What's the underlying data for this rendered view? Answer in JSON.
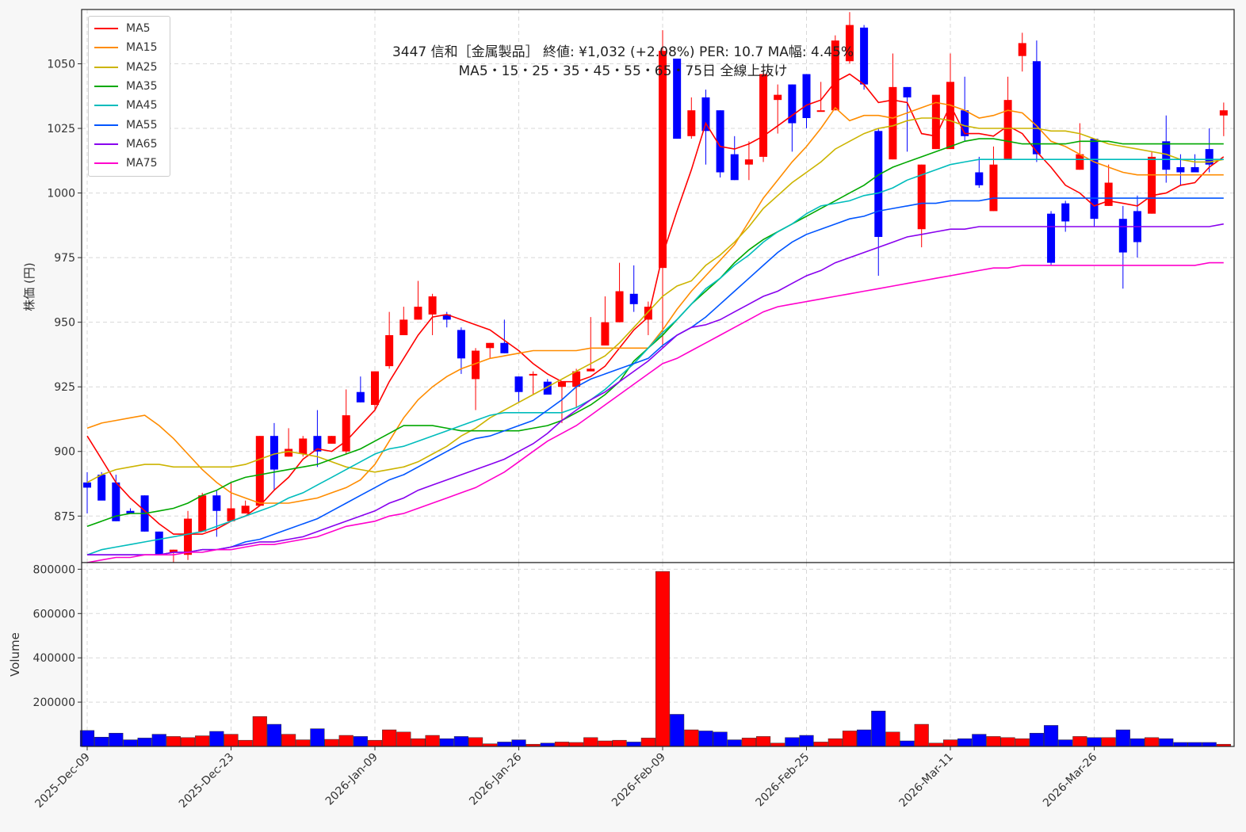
{
  "title_line1": "3447 信和［金属製品］ 終値: ¥1,032 (+2.08%)   PER: 10.7  MA幅: 4.45%",
  "title_line2": "MA5・15・25・35・45・55・65・75日 全線上抜け",
  "chart_data": {
    "type": "candlestick",
    "ylabel_price": "株価 (円)",
    "ylabel_volume": "Volume",
    "price_ylim": [
      857,
      1071
    ],
    "price_yticks": [
      875,
      900,
      925,
      950,
      975,
      1000,
      1025,
      1050
    ],
    "volume_ylim": [
      0,
      830000
    ],
    "volume_yticks": [
      200000,
      400000,
      600000,
      800000
    ],
    "xtick_labels": [
      {
        "index": 0,
        "label": "2025-Dec-09"
      },
      {
        "index": 10,
        "label": "2025-Dec-23"
      },
      {
        "index": 20,
        "label": "2026-Jan-09"
      },
      {
        "index": 30,
        "label": "2026-Jan-26"
      },
      {
        "index": 40,
        "label": "2026-Feb-09"
      },
      {
        "index": 50,
        "label": "2026-Feb-25"
      },
      {
        "index": 60,
        "label": "2026-Mar-11"
      },
      {
        "index": 70,
        "label": "2026-Mar-26"
      }
    ],
    "candles": [
      [
        888,
        892,
        876,
        886
      ],
      [
        891,
        892,
        882,
        881
      ],
      [
        888,
        891,
        873,
        873
      ],
      [
        877,
        878,
        876,
        876
      ],
      [
        883,
        883,
        869,
        869
      ],
      [
        869,
        869,
        860,
        860
      ],
      [
        861,
        862,
        857,
        862
      ],
      [
        860,
        877,
        858,
        874
      ],
      [
        869,
        884,
        869,
        883
      ],
      [
        883,
        885,
        867,
        877
      ],
      [
        873,
        888,
        873,
        878
      ],
      [
        876,
        881,
        876,
        879
      ],
      [
        879,
        906,
        879,
        906
      ],
      [
        906,
        911,
        885,
        893
      ],
      [
        898,
        909,
        898,
        901
      ],
      [
        899,
        906,
        898,
        905
      ],
      [
        906,
        916,
        894,
        900
      ],
      [
        903,
        906,
        903,
        906
      ],
      [
        900,
        924,
        899,
        914
      ],
      [
        923,
        929,
        919,
        919
      ],
      [
        918,
        931,
        916,
        931
      ],
      [
        933,
        954,
        932,
        945
      ],
      [
        945,
        956,
        945,
        951
      ],
      [
        951,
        966,
        951,
        956
      ],
      [
        953,
        961,
        945,
        960
      ],
      [
        953,
        954,
        948,
        951
      ],
      [
        947,
        948,
        930,
        936
      ],
      [
        928,
        940,
        916,
        939
      ],
      [
        940,
        942,
        936,
        942
      ],
      [
        942,
        951,
        938,
        938
      ],
      [
        929,
        929,
        919,
        923
      ],
      [
        930,
        931,
        922,
        930
      ],
      [
        927,
        928,
        922,
        922
      ],
      [
        925,
        926,
        911,
        927
      ],
      [
        925,
        932,
        917,
        931
      ],
      [
        931,
        952,
        931,
        932
      ],
      [
        941,
        960,
        941,
        950
      ],
      [
        950,
        973,
        950,
        962
      ],
      [
        961,
        972,
        954,
        957
      ],
      [
        951,
        958,
        945,
        956
      ],
      [
        971,
        1063,
        940,
        1055
      ],
      [
        1052,
        1052,
        1021,
        1021
      ],
      [
        1022,
        1037,
        1021,
        1032
      ],
      [
        1037,
        1040,
        1011,
        1024
      ],
      [
        1032,
        1032,
        1006,
        1008
      ],
      [
        1015,
        1022,
        1005,
        1005
      ],
      [
        1011,
        1020,
        1005,
        1013
      ],
      [
        1014,
        1048,
        1012,
        1046
      ],
      [
        1036,
        1042,
        1023,
        1038
      ],
      [
        1042,
        1042,
        1016,
        1027
      ],
      [
        1046,
        1046,
        1025,
        1029
      ],
      [
        1032,
        1043,
        1032,
        1032
      ],
      [
        1032,
        1061,
        1032,
        1059
      ],
      [
        1051,
        1070,
        1050,
        1065
      ],
      [
        1064,
        1065,
        1040,
        1042
      ],
      [
        1024,
        1025,
        968,
        983
      ],
      [
        1013,
        1054,
        1013,
        1041
      ],
      [
        1041,
        1041,
        1016,
        1037
      ],
      [
        986,
        1011,
        979,
        1011
      ],
      [
        1017,
        1038,
        1017,
        1038
      ],
      [
        1017,
        1054,
        1017,
        1043
      ],
      [
        1032,
        1045,
        1020,
        1022
      ],
      [
        1008,
        1014,
        1002,
        1003
      ],
      [
        993,
        1018,
        993,
        1011
      ],
      [
        1013,
        1045,
        1013,
        1036
      ],
      [
        1053,
        1062,
        1047,
        1058
      ],
      [
        1051,
        1059,
        1012,
        1015
      ],
      [
        992,
        993,
        972,
        973
      ],
      [
        996,
        997,
        985,
        989
      ],
      [
        1009,
        1027,
        1009,
        1015
      ],
      [
        1021,
        1021,
        987,
        990
      ],
      [
        995,
        1011,
        995,
        1004
      ],
      [
        990,
        995,
        963,
        977
      ],
      [
        993,
        999,
        975,
        981
      ],
      [
        992,
        1016,
        992,
        1014
      ],
      [
        1020,
        1030,
        1004,
        1009
      ],
      [
        1010,
        1015,
        1003,
        1008
      ],
      [
        1010,
        1015,
        1009,
        1008
      ],
      [
        1017,
        1025,
        1008,
        1011
      ],
      [
        1030,
        1035,
        1022,
        1032
      ]
    ],
    "volumes": [
      72000,
      42000,
      60000,
      30000,
      38000,
      55000,
      45000,
      40000,
      48000,
      68000,
      55000,
      28000,
      135000,
      100000,
      55000,
      30000,
      80000,
      32000,
      50000,
      45000,
      28000,
      75000,
      65000,
      35000,
      50000,
      35000,
      45000,
      40000,
      12000,
      20000,
      30000,
      10000,
      15000,
      20000,
      18000,
      40000,
      25000,
      28000,
      20000,
      38000,
      790000,
      145000,
      75000,
      70000,
      65000,
      30000,
      38000,
      45000,
      15000,
      40000,
      50000,
      20000,
      35000,
      70000,
      75000,
      160000,
      65000,
      25000,
      100000,
      15000,
      30000,
      35000,
      55000,
      45000,
      40000,
      35000,
      60000,
      95000,
      30000,
      45000,
      40000,
      40000,
      75000,
      35000,
      40000,
      35000,
      18000,
      18000,
      18000,
      10000
    ],
    "series": [
      {
        "name": "MA5",
        "color": "#ff0000",
        "values": [
          906,
          897,
          888,
          882,
          877,
          872,
          868,
          868,
          868,
          870,
          873,
          875,
          879,
          885,
          890,
          897,
          901,
          900,
          904,
          910,
          916,
          927,
          936,
          945,
          952,
          953,
          951,
          949,
          947,
          943,
          939,
          934,
          930,
          927,
          927,
          929,
          933,
          940,
          947,
          952,
          976,
          993,
          1009,
          1027,
          1018,
          1017,
          1019,
          1022,
          1026,
          1030,
          1034,
          1036,
          1043,
          1046,
          1042,
          1035,
          1036,
          1035,
          1023,
          1022,
          1034,
          1023,
          1023,
          1022,
          1026,
          1023,
          1016,
          1010,
          1003,
          1000,
          995,
          997,
          996,
          995,
          999,
          1000,
          1003,
          1004,
          1010,
          1014
        ]
      },
      {
        "name": "MA15",
        "color": "#ff8c00",
        "values": [
          909,
          911,
          912,
          913,
          914,
          910,
          905,
          899,
          893,
          888,
          884,
          882,
          880,
          880,
          880,
          881,
          882,
          884,
          886,
          889,
          895,
          904,
          913,
          920,
          925,
          929,
          932,
          934,
          936,
          937,
          938,
          939,
          939,
          939,
          939,
          940,
          940,
          940,
          940,
          940,
          947,
          955,
          962,
          968,
          974,
          980,
          989,
          998,
          1005,
          1012,
          1018,
          1025,
          1033,
          1028,
          1030,
          1030,
          1029,
          1031,
          1033,
          1035,
          1034,
          1032,
          1029,
          1030,
          1032,
          1031,
          1026,
          1020,
          1018,
          1015,
          1012,
          1010,
          1008,
          1007,
          1007,
          1007,
          1007,
          1007,
          1007,
          1007
        ]
      },
      {
        "name": "MA25",
        "color": "#ccb400",
        "values": [
          888,
          891,
          893,
          894,
          895,
          895,
          894,
          894,
          894,
          894,
          894,
          895,
          897,
          899,
          900,
          899,
          898,
          896,
          894,
          893,
          892,
          893,
          894,
          896,
          899,
          902,
          906,
          909,
          913,
          916,
          919,
          922,
          925,
          928,
          931,
          934,
          937,
          942,
          948,
          954,
          960,
          964,
          966,
          972,
          976,
          981,
          987,
          994,
          999,
          1004,
          1008,
          1012,
          1017,
          1020,
          1023,
          1025,
          1026,
          1028,
          1029,
          1029,
          1028,
          1026,
          1025,
          1025,
          1025,
          1025,
          1025,
          1024,
          1024,
          1023,
          1021,
          1019,
          1018,
          1017,
          1016,
          1015,
          1013,
          1012,
          1012,
          1013
        ]
      },
      {
        "name": "MA35",
        "color": "#00a800",
        "values": [
          871,
          873,
          875,
          876,
          876,
          877,
          878,
          880,
          883,
          885,
          888,
          890,
          891,
          892,
          893,
          894,
          895,
          897,
          899,
          901,
          904,
          907,
          910,
          910,
          910,
          909,
          908,
          908,
          908,
          908,
          908,
          909,
          910,
          912,
          915,
          918,
          922,
          927,
          935,
          940,
          945,
          951,
          957,
          962,
          967,
          973,
          978,
          982,
          985,
          988,
          991,
          994,
          997,
          1000,
          1003,
          1007,
          1010,
          1012,
          1014,
          1016,
          1018,
          1020,
          1021,
          1021,
          1020,
          1019,
          1019,
          1019,
          1019,
          1020,
          1020,
          1020,
          1019,
          1019,
          1019,
          1019,
          1019,
          1019,
          1019,
          1019
        ]
      },
      {
        "name": "MA45",
        "color": "#00bcbc",
        "values": [
          860,
          862,
          863,
          864,
          865,
          866,
          867,
          868,
          869,
          871,
          873,
          875,
          877,
          879,
          882,
          884,
          887,
          890,
          893,
          896,
          899,
          901,
          902,
          904,
          906,
          908,
          910,
          912,
          914,
          915,
          915,
          915,
          915,
          915,
          917,
          920,
          924,
          929,
          934,
          940,
          946,
          951,
          957,
          963,
          967,
          972,
          976,
          981,
          985,
          988,
          992,
          995,
          996,
          997,
          999,
          1000,
          1002,
          1005,
          1007,
          1009,
          1011,
          1012,
          1013,
          1013,
          1013,
          1013,
          1013,
          1013,
          1013,
          1013,
          1013,
          1013,
          1013,
          1013,
          1013,
          1013,
          1013,
          1013,
          1013,
          1013
        ]
      },
      {
        "name": "MA55",
        "color": "#0055ff",
        "values": [
          860,
          860,
          860,
          860,
          860,
          860,
          861,
          861,
          862,
          862,
          863,
          865,
          866,
          868,
          870,
          872,
          874,
          877,
          880,
          883,
          886,
          889,
          891,
          894,
          897,
          900,
          903,
          905,
          906,
          908,
          910,
          912,
          916,
          920,
          925,
          928,
          930,
          932,
          934,
          936,
          941,
          945,
          948,
          952,
          957,
          962,
          967,
          972,
          977,
          981,
          984,
          986,
          988,
          990,
          991,
          993,
          994,
          995,
          996,
          996,
          997,
          997,
          997,
          998,
          998,
          998,
          998,
          998,
          998,
          998,
          998,
          998,
          998,
          998,
          998,
          998,
          998,
          998,
          998,
          998
        ]
      },
      {
        "name": "MA65",
        "color": "#8800ee",
        "values": [
          860,
          860,
          860,
          860,
          860,
          860,
          861,
          861,
          862,
          862,
          863,
          864,
          865,
          865,
          866,
          867,
          869,
          871,
          873,
          875,
          877,
          880,
          882,
          885,
          887,
          889,
          891,
          893,
          895,
          897,
          900,
          903,
          907,
          912,
          916,
          920,
          923,
          927,
          931,
          935,
          940,
          945,
          948,
          949,
          951,
          954,
          957,
          960,
          962,
          965,
          968,
          970,
          973,
          975,
          977,
          979,
          981,
          983,
          984,
          985,
          986,
          986,
          987,
          987,
          987,
          987,
          987,
          987,
          987,
          987,
          987,
          987,
          987,
          987,
          987,
          987,
          987,
          987,
          987,
          988
        ]
      },
      {
        "name": "MA75",
        "color": "#ff00cc",
        "values": [
          857,
          858,
          859,
          859,
          860,
          860,
          860,
          861,
          861,
          862,
          862,
          863,
          864,
          864,
          865,
          866,
          867,
          869,
          871,
          872,
          873,
          875,
          876,
          878,
          880,
          882,
          884,
          886,
          889,
          892,
          896,
          900,
          904,
          907,
          910,
          914,
          918,
          922,
          926,
          930,
          934,
          936,
          939,
          942,
          945,
          948,
          951,
          954,
          956,
          957,
          958,
          959,
          960,
          961,
          962,
          963,
          964,
          965,
          966,
          967,
          968,
          969,
          970,
          971,
          971,
          972,
          972,
          972,
          972,
          972,
          972,
          972,
          972,
          972,
          972,
          972,
          972,
          972,
          973,
          973
        ]
      }
    ]
  }
}
